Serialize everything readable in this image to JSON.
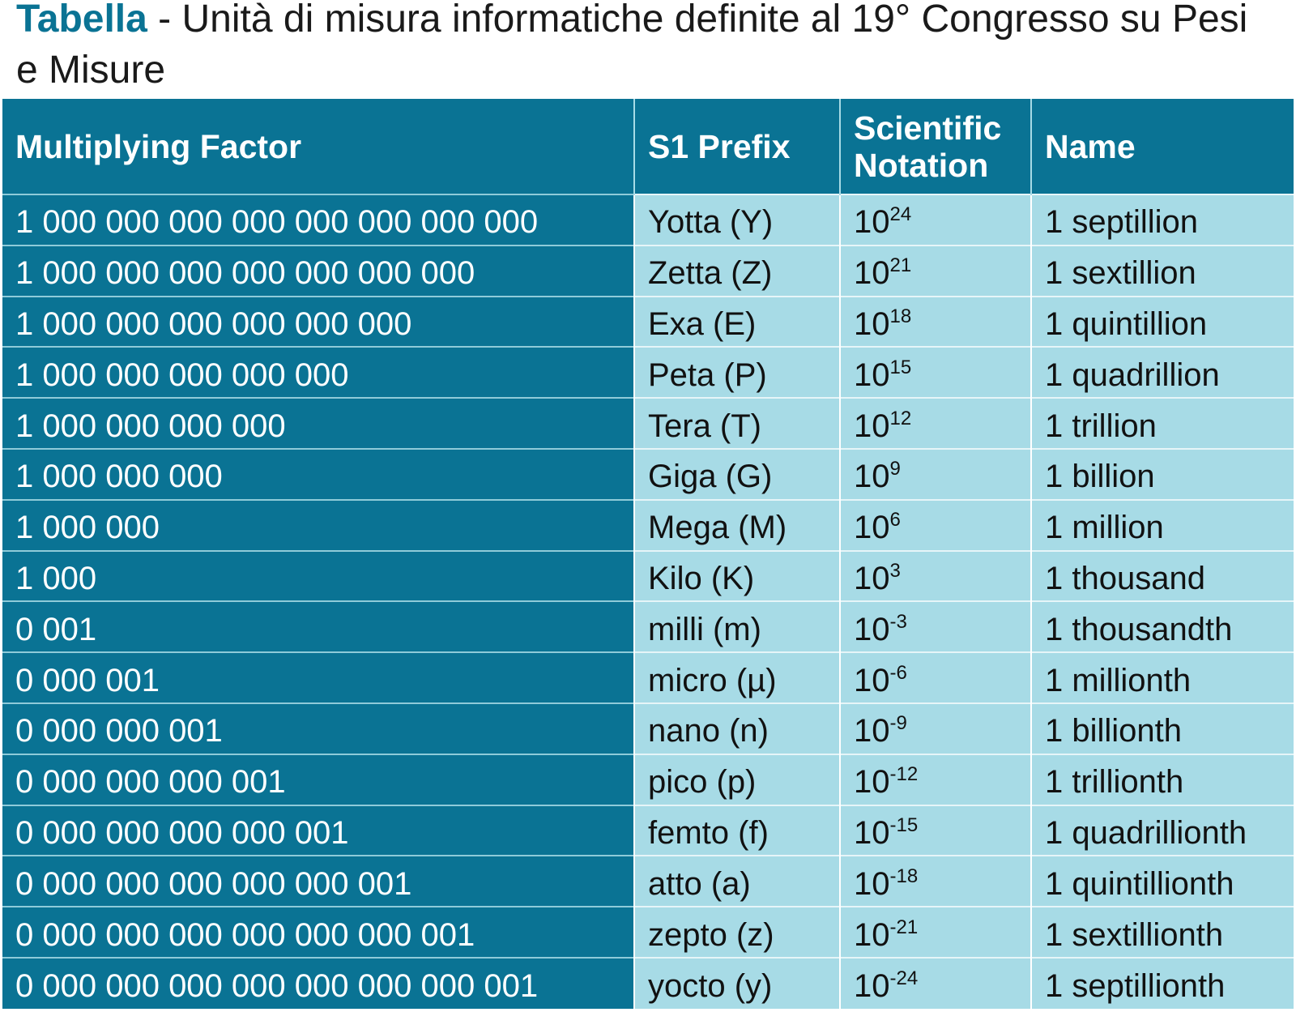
{
  "title": {
    "label": "Tabella",
    "separator": " - ",
    "text": "Unità di misura informatiche definite al 19° Congresso su Pesi e Misure"
  },
  "table": {
    "headers": {
      "factor": "Multiplying Factor",
      "prefix": "S1 Prefix",
      "notation": "Scientific Notation",
      "name": "Name"
    },
    "rows": [
      {
        "factor": "1 000 000 000 000 000 000 000 000",
        "prefix": "Yotta (Y)",
        "base": "10",
        "exp": "24",
        "name": "1 septillion"
      },
      {
        "factor": "1 000 000 000 000 000 000 000",
        "prefix": "Zetta (Z)",
        "base": "10",
        "exp": "21",
        "name": "1 sextillion"
      },
      {
        "factor": "1 000 000 000 000 000 000",
        "prefix": "Exa (E)",
        "base": "10",
        "exp": "18",
        "name": "1 quintillion"
      },
      {
        "factor": "1 000 000 000 000 000",
        "prefix": "Peta (P)",
        "base": "10",
        "exp": "15",
        "name": "1 quadrillion"
      },
      {
        "factor": "1 000 000 000 000",
        "prefix": "Tera (T)",
        "base": "10",
        "exp": "12",
        "name": "1 trillion"
      },
      {
        "factor": "1 000 000 000",
        "prefix": "Giga (G)",
        "base": "10",
        "exp": "9",
        "name": "1 billion"
      },
      {
        "factor": "1 000 000",
        "prefix": "Mega (M)",
        "base": "10",
        "exp": "6",
        "name": "1 million"
      },
      {
        "factor": "1 000",
        "prefix": "Kilo (K)",
        "base": "10",
        "exp": "3",
        "name": "1 thousand"
      },
      {
        "factor": "0 001",
        "prefix": "milli (m)",
        "base": "10",
        "exp": "-3",
        "name": "1 thousandth"
      },
      {
        "factor": "0 000 001",
        "prefix": "micro (µ)",
        "base": "10",
        "exp": "-6",
        "name": "1 millionth"
      },
      {
        "factor": "0 000 000 001",
        "prefix": "nano (n)",
        "base": "10",
        "exp": "-9",
        "name": "1 billionth"
      },
      {
        "factor": "0 000 000 000 001",
        "prefix": "pico (p)",
        "base": "10",
        "exp": "-12",
        "name": "1 trillionth"
      },
      {
        "factor": "0 000 000 000 000 001",
        "prefix": "femto (f)",
        "base": "10",
        "exp": "-15",
        "name": "1 quadrillionth"
      },
      {
        "factor": "0 000 000 000 000 000 001",
        "prefix": "atto (a)",
        "base": "10",
        "exp": "-18",
        "name": "1 quintillionth"
      },
      {
        "factor": "0 000 000 000 000 000 000 001",
        "prefix": "zepto (z)",
        "base": "10",
        "exp": "-21",
        "name": "1 sextillionth"
      },
      {
        "factor": "0 000 000 000 000 000 000 000 001",
        "prefix": "yocto (y)",
        "base": "10",
        "exp": "-24",
        "name": "1 septillionth"
      }
    ]
  },
  "colors": {
    "dark_teal": "#0a7394",
    "light_teal": "#a7dbe6"
  }
}
